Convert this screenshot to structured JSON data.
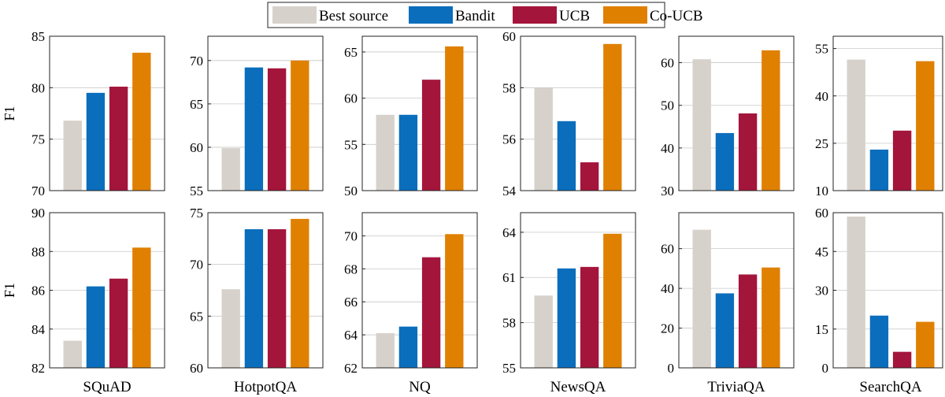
{
  "legend": {
    "placement": "top-center",
    "items": [
      {
        "label": "Best source",
        "color": "#d6d2cb"
      },
      {
        "label": "Bandit",
        "color": "#0a6ebd"
      },
      {
        "label": "UCB",
        "color": "#a4153b"
      },
      {
        "label": "Co-UCB",
        "color": "#e08000"
      }
    ]
  },
  "ylabel": "F1",
  "chart_data": [
    {
      "type": "bar",
      "row": 1,
      "xlabel": "",
      "ylabel": "F1",
      "categories": [
        "Best source",
        "Bandit",
        "UCB",
        "Co-UCB"
      ],
      "values": [
        76.8,
        79.5,
        80.1,
        83.4
      ],
      "ylim": [
        70,
        85
      ],
      "yticks": [
        70,
        75,
        80,
        85
      ],
      "grid": true
    },
    {
      "type": "bar",
      "row": 1,
      "xlabel": "",
      "ylabel": "",
      "categories": [
        "Best source",
        "Bandit",
        "UCB",
        "Co-UCB"
      ],
      "values": [
        59.9,
        69.2,
        69.1,
        70.0
      ],
      "ylim": [
        55,
        72.8
      ],
      "yticks": [
        55,
        60,
        65,
        70
      ],
      "grid": true
    },
    {
      "type": "bar",
      "row": 1,
      "xlabel": "",
      "ylabel": "",
      "categories": [
        "Best source",
        "Bandit",
        "UCB",
        "Co-UCB"
      ],
      "values": [
        58.2,
        58.2,
        62.0,
        65.6
      ],
      "ylim": [
        50,
        66.7
      ],
      "yticks": [
        50,
        55,
        60,
        65
      ],
      "grid": true
    },
    {
      "type": "bar",
      "row": 1,
      "xlabel": "",
      "ylabel": "",
      "categories": [
        "Best source",
        "Bandit",
        "UCB",
        "Co-UCB"
      ],
      "values": [
        58.0,
        56.7,
        55.1,
        59.7
      ],
      "ylim": [
        54,
        60
      ],
      "yticks": [
        54,
        56,
        58,
        60
      ],
      "grid": true
    },
    {
      "type": "bar",
      "row": 1,
      "xlabel": "",
      "ylabel": "",
      "categories": [
        "Best source",
        "Bandit",
        "UCB",
        "Co-UCB"
      ],
      "values": [
        60.8,
        43.5,
        48.1,
        62.9
      ],
      "ylim": [
        30,
        66.2
      ],
      "yticks": [
        30,
        40,
        50,
        60
      ],
      "grid": true
    },
    {
      "type": "bar",
      "row": 1,
      "xlabel": "",
      "ylabel": "",
      "categories": [
        "Best source",
        "Bandit",
        "UCB",
        "Co-UCB"
      ],
      "values": [
        51.5,
        23.0,
        29.0,
        51.0
      ],
      "ylim": [
        10,
        58.9
      ],
      "yticks": [
        10,
        25,
        40,
        55
      ],
      "grid": true
    },
    {
      "type": "bar",
      "row": 2,
      "xlabel": "SQuAD",
      "ylabel": "F1",
      "categories": [
        "Best source",
        "Bandit",
        "UCB",
        "Co-UCB"
      ],
      "values": [
        83.4,
        86.2,
        86.6,
        88.2
      ],
      "ylim": [
        82,
        90
      ],
      "yticks": [
        82,
        84,
        86,
        88,
        90
      ],
      "grid": true
    },
    {
      "type": "bar",
      "row": 2,
      "xlabel": "HotpotQA",
      "ylabel": "",
      "categories": [
        "Best source",
        "Bandit",
        "UCB",
        "Co-UCB"
      ],
      "values": [
        67.6,
        73.4,
        73.4,
        74.4
      ],
      "ylim": [
        60,
        75
      ],
      "yticks": [
        60,
        65,
        70,
        75
      ],
      "grid": true
    },
    {
      "type": "bar",
      "row": 2,
      "xlabel": "NQ",
      "ylabel": "",
      "categories": [
        "Best source",
        "Bandit",
        "UCB",
        "Co-UCB"
      ],
      "values": [
        64.1,
        64.5,
        68.7,
        70.1
      ],
      "ylim": [
        62,
        71.4
      ],
      "yticks": [
        62,
        64,
        66,
        68,
        70
      ],
      "grid": true
    },
    {
      "type": "bar",
      "row": 2,
      "xlabel": "NewsQA",
      "ylabel": "",
      "categories": [
        "Best source",
        "Bandit",
        "UCB",
        "Co-UCB"
      ],
      "values": [
        59.8,
        61.6,
        61.7,
        63.9
      ],
      "ylim": [
        55,
        65.3
      ],
      "yticks": [
        55,
        58,
        61,
        64
      ],
      "grid": true
    },
    {
      "type": "bar",
      "row": 2,
      "xlabel": "TriviaQA",
      "ylabel": "",
      "categories": [
        "Best source",
        "Bandit",
        "UCB",
        "Co-UCB"
      ],
      "values": [
        69.5,
        37.5,
        47.0,
        50.5
      ],
      "ylim": [
        0,
        78.1
      ],
      "yticks": [
        0,
        20,
        40,
        60
      ],
      "grid": true
    },
    {
      "type": "bar",
      "row": 2,
      "xlabel": "SearchQA",
      "ylabel": "",
      "categories": [
        "Best source",
        "Bandit",
        "UCB",
        "Co-UCB"
      ],
      "values": [
        58.5,
        20.2,
        6.2,
        17.8
      ],
      "ylim": [
        0,
        60
      ],
      "yticks": [
        0,
        15,
        30,
        45,
        60
      ],
      "grid": true
    }
  ]
}
